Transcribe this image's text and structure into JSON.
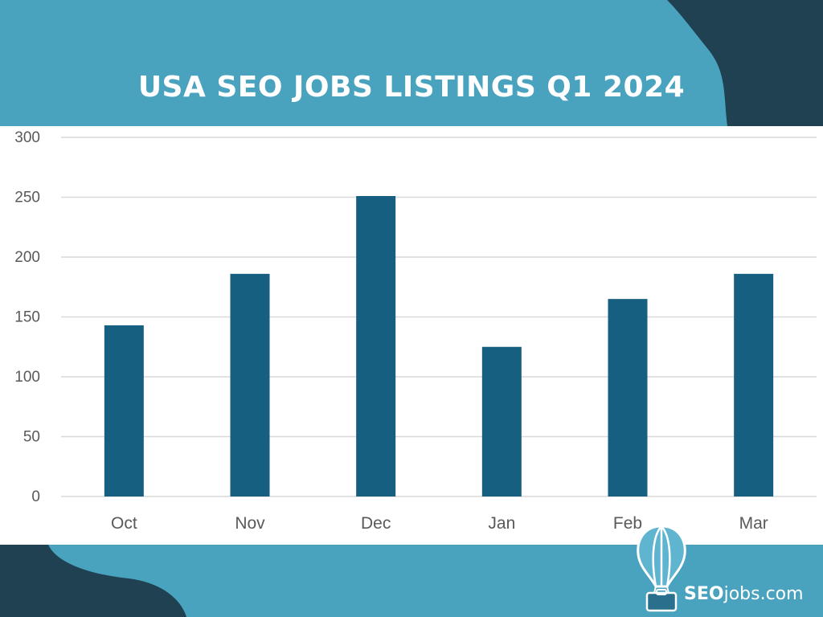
{
  "colors": {
    "background": "#49a3bf",
    "dark_shape": "#1f4151",
    "bar": "#175f80",
    "grid": "#d9d9d9",
    "axis_text": "#595959"
  },
  "header": {
    "title": "USA SEO JOBS LISTINGS Q1 2024"
  },
  "logo": {
    "icon": "hot-air-balloon-icon",
    "brand": "SEO",
    "suffix": "jobs.com"
  },
  "chart_data": {
    "type": "bar",
    "title": "USA SEO JOBS LISTINGS Q1 2024",
    "categories": [
      "Oct",
      "Nov",
      "Dec",
      "Jan",
      "Feb",
      "Mar"
    ],
    "values": [
      143,
      186,
      251,
      125,
      165,
      186
    ],
    "ylim": [
      0,
      300
    ],
    "yticks": [
      0,
      50,
      100,
      150,
      200,
      250,
      300
    ],
    "grid": true,
    "xlabel": "",
    "ylabel": ""
  }
}
